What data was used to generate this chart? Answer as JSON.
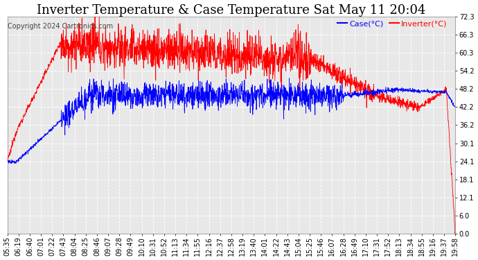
{
  "title": "Inverter Temperature & Case Temperature Sat May 11 20:04",
  "copyright": "Copyright 2024 Cartronics.com",
  "legend_case_label": "Case(°C)",
  "legend_inverter_label": "Inverter(°C)",
  "case_color": "#0000ff",
  "inverter_color": "#ff0000",
  "yticks": [
    0.0,
    6.0,
    12.1,
    18.1,
    24.1,
    30.1,
    36.2,
    42.2,
    48.2,
    54.2,
    60.3,
    66.3,
    72.3
  ],
  "ylim": [
    0.0,
    72.3
  ],
  "background_color": "#ffffff",
  "plot_bg_color": "#e8e8e8",
  "grid_color": "#ffffff",
  "title_fontsize": 13,
  "tick_fontsize": 7,
  "copyright_fontsize": 7,
  "xtick_labels": [
    "05:35",
    "06:19",
    "06:40",
    "07:01",
    "07:22",
    "07:43",
    "08:04",
    "08:25",
    "08:46",
    "09:07",
    "09:28",
    "09:49",
    "10:10",
    "10:31",
    "10:52",
    "11:13",
    "11:34",
    "11:55",
    "12:16",
    "12:37",
    "12:58",
    "13:19",
    "13:40",
    "14:01",
    "14:22",
    "14:43",
    "15:04",
    "15:25",
    "15:46",
    "16:07",
    "16:28",
    "16:49",
    "17:10",
    "17:31",
    "17:52",
    "18:13",
    "18:34",
    "18:55",
    "19:16",
    "19:37",
    "19:58"
  ]
}
